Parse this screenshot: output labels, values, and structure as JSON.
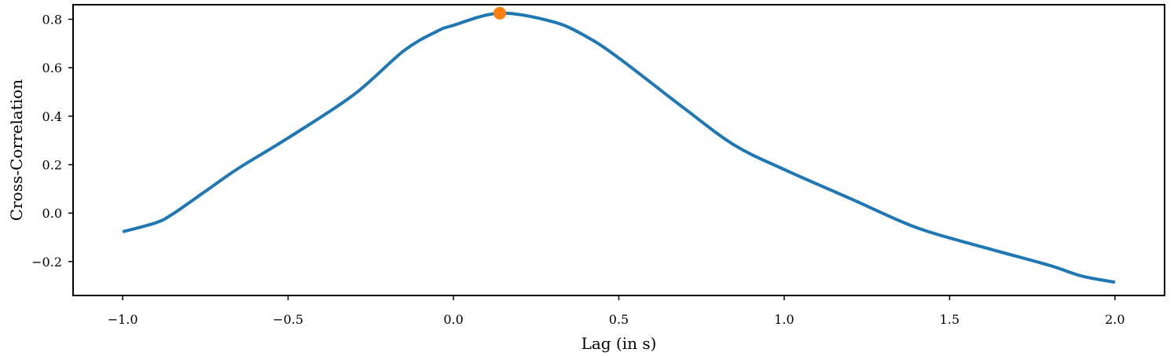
{
  "chart_data": {
    "type": "line",
    "xlabel": "Lag (in s)",
    "ylabel": "Cross-Correlation",
    "xlim": [
      -1.15,
      2.15
    ],
    "ylim": [
      -0.34,
      0.86
    ],
    "x_ticks": [
      -1.0,
      -0.5,
      0.0,
      0.5,
      1.0,
      1.5,
      2.0
    ],
    "x_tick_labels": [
      "−1.0",
      "−0.5",
      "0.0",
      "0.5",
      "1.0",
      "1.5",
      "2.0"
    ],
    "y_ticks": [
      -0.2,
      0.0,
      0.2,
      0.4,
      0.6,
      0.8
    ],
    "y_tick_labels": [
      "−0.2",
      "0.0",
      "0.2",
      "0.4",
      "0.6",
      "0.8"
    ],
    "grid": false,
    "series": [
      {
        "color": "#1f77b4",
        "x": [
          -1.0,
          -0.9,
          -0.85,
          -0.75,
          -0.65,
          -0.5,
          -0.3,
          -0.15,
          -0.05,
          0.0,
          0.14,
          0.3,
          0.4,
          0.5,
          0.7,
          0.85,
          1.0,
          1.2,
          1.4,
          1.6,
          1.8,
          1.9,
          2.0
        ],
        "y": [
          -0.077,
          -0.04,
          -0.005,
          0.09,
          0.185,
          0.31,
          0.49,
          0.67,
          0.75,
          0.775,
          0.825,
          0.79,
          0.73,
          0.64,
          0.43,
          0.28,
          0.18,
          0.06,
          -0.06,
          -0.14,
          -0.215,
          -0.26,
          -0.285
        ]
      }
    ],
    "markers": [
      {
        "x": 0.14,
        "y": 0.825,
        "color": "#ff7f0e"
      }
    ]
  }
}
